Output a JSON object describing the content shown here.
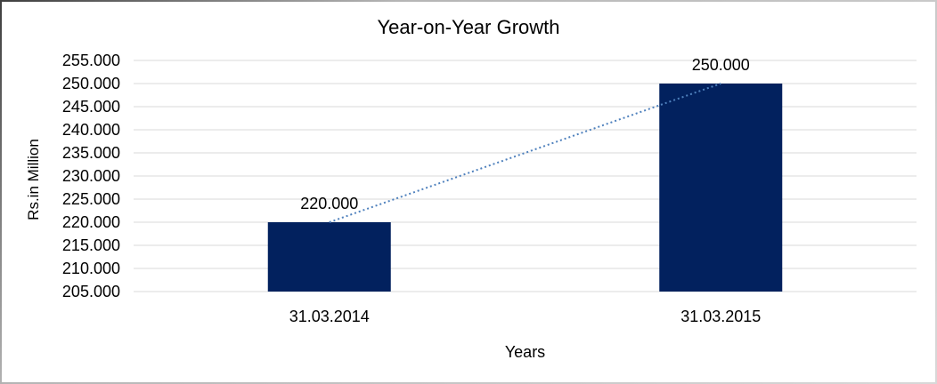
{
  "chart_data": {
    "type": "bar",
    "title": "Year-on-Year Growth",
    "xlabel": "Years",
    "ylabel": "Rs.in Million",
    "categories": [
      "31.03.2014",
      "31.03.2015"
    ],
    "values": [
      220,
      250
    ],
    "value_labels": [
      "220.000",
      "250.000"
    ],
    "ylim": [
      205,
      255
    ],
    "ytick_step": 5,
    "ytick_labels_top_to_bottom": [
      "255.000",
      "250.000",
      "245.000",
      "240.000",
      "235.000",
      "230.000",
      "225.000",
      "220.000",
      "215.000",
      "210.000",
      "205.000"
    ],
    "grid": true,
    "legend_position": "none",
    "trendline": {
      "type": "linear",
      "style": "dotted",
      "from_value": 220,
      "to_value": 250
    },
    "colors": {
      "bar": "#02215e",
      "trendline": "#4f81bd",
      "gridline": "#d9d9d9",
      "text": "#000000"
    }
  }
}
